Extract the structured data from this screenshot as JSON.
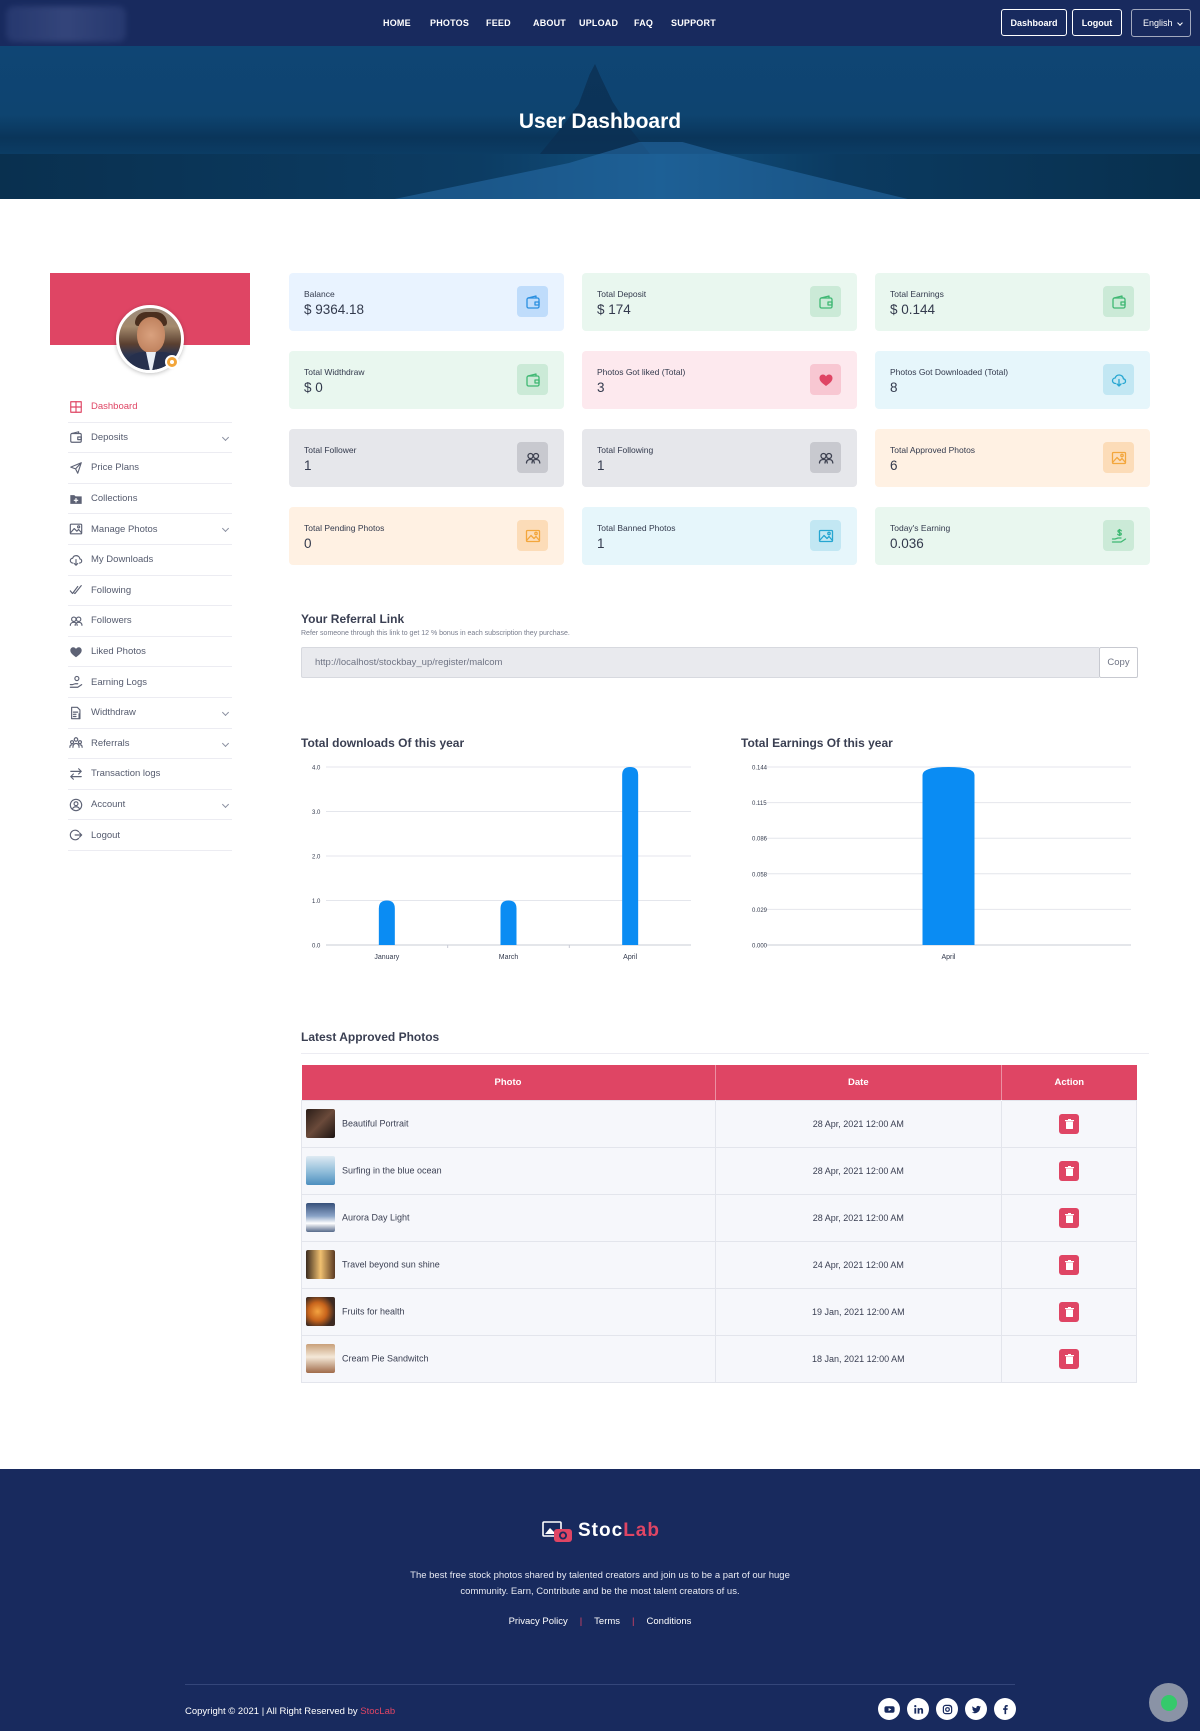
{
  "nav": {
    "links": [
      "HOME",
      "PHOTOS",
      "FEED",
      "ABOUT",
      "UPLOAD",
      "FAQ",
      "SUPPORT"
    ],
    "dashboard_btn": "Dashboard",
    "logout_btn": "Logout",
    "language": "English"
  },
  "hero": {
    "title": "User Dashboard"
  },
  "sidebar": {
    "items": [
      {
        "label": "Dashboard",
        "icon": "grid-icon",
        "active": true,
        "expandable": false
      },
      {
        "label": "Deposits",
        "icon": "wallet-icon",
        "active": false,
        "expandable": true
      },
      {
        "label": "Price Plans",
        "icon": "paper-plane-icon",
        "active": false,
        "expandable": false
      },
      {
        "label": "Collections",
        "icon": "folder-plus-icon",
        "active": false,
        "expandable": false
      },
      {
        "label": "Manage Photos",
        "icon": "image-icon",
        "active": false,
        "expandable": true
      },
      {
        "label": "My Downloads",
        "icon": "cloud-download-icon",
        "active": false,
        "expandable": false
      },
      {
        "label": "Following",
        "icon": "double-check-icon",
        "active": false,
        "expandable": false
      },
      {
        "label": "Followers",
        "icon": "users-icon",
        "active": false,
        "expandable": false
      },
      {
        "label": "Liked Photos",
        "icon": "heart-icon",
        "active": false,
        "expandable": false
      },
      {
        "label": "Earning Logs",
        "icon": "hand-coin-icon",
        "active": false,
        "expandable": false
      },
      {
        "label": "Widthdraw",
        "icon": "document-dollar-icon",
        "active": false,
        "expandable": true
      },
      {
        "label": "Referrals",
        "icon": "group-icon",
        "active": false,
        "expandable": true
      },
      {
        "label": "Transaction logs",
        "icon": "transfer-icon",
        "active": false,
        "expandable": false
      },
      {
        "label": "Account",
        "icon": "user-circle-icon",
        "active": false,
        "expandable": true
      },
      {
        "label": "Logout",
        "icon": "logout-icon",
        "active": false,
        "expandable": false
      }
    ]
  },
  "stats": [
    {
      "label": "Balance",
      "value": "$ 9364.18",
      "theme": "blue",
      "icon": "wallet-icon",
      "color": "#2a8fe0"
    },
    {
      "label": "Total Deposit",
      "value": "$ 174",
      "theme": "green",
      "icon": "wallet-icon",
      "color": "#3fb873"
    },
    {
      "label": "Total Earnings",
      "value": "$ 0.144",
      "theme": "green",
      "icon": "wallet-icon",
      "color": "#3fb873"
    },
    {
      "label": "Total Widthdraw",
      "value": "$ 0",
      "theme": "green",
      "icon": "wallet-icon",
      "color": "#3fb873"
    },
    {
      "label": "Photos Got liked (Total)",
      "value": "3",
      "theme": "pink",
      "icon": "heart-icon",
      "color": "#df4564"
    },
    {
      "label": "Photos Got Downloaded (Total)",
      "value": "8",
      "theme": "cyan",
      "icon": "cloud-download-icon",
      "color": "#26a6d1"
    },
    {
      "label": "Total Follower",
      "value": "1",
      "theme": "grey",
      "icon": "users-icon",
      "color": "#3d4150"
    },
    {
      "label": "Total Following",
      "value": "1",
      "theme": "grey",
      "icon": "users-icon",
      "color": "#3d4150"
    },
    {
      "label": "Total Approved Photos",
      "value": "6",
      "theme": "orange",
      "icon": "image-icon",
      "color": "#f3a63c"
    },
    {
      "label": "Total Pending Photos",
      "value": "0",
      "theme": "orange",
      "icon": "image-icon",
      "color": "#f3a63c"
    },
    {
      "label": "Total Banned Photos",
      "value": "1",
      "theme": "cyan",
      "icon": "image-icon",
      "color": "#26a6d1"
    },
    {
      "label": "Today's Earning",
      "value": "0.036",
      "theme": "green",
      "icon": "hand-dollar-icon",
      "color": "#3fb873"
    }
  ],
  "referral": {
    "title": "Your Referral Link",
    "subtitle": "Refer someone through this link to get 12 % bonus in each subscription they purchase.",
    "link": "http://localhost/stockbay_up/register/malcom",
    "copy_label": "Copy"
  },
  "chart_data": [
    {
      "type": "bar",
      "title": "Total downloads Of this year",
      "categories": [
        "January",
        "March",
        "April"
      ],
      "values": [
        1,
        1,
        4
      ],
      "yticks": [
        "0.0",
        "1.0",
        "2.0",
        "3.0",
        "4.0"
      ],
      "ylim": [
        0,
        4
      ],
      "color": "#0a8cf3",
      "grid": true
    },
    {
      "type": "bar",
      "title": "Total Earnings Of this year",
      "categories": [
        "April"
      ],
      "values": [
        0.144
      ],
      "yticks": [
        "0.000",
        "0.029",
        "0.058",
        "0.086",
        "0.115",
        "0.144"
      ],
      "ylim": [
        0,
        0.144
      ],
      "color": "#0a8cf3",
      "grid": true
    }
  ],
  "approved": {
    "title": "Latest Approved Photos",
    "headers": [
      "Photo",
      "Date",
      "Action"
    ],
    "rows": [
      {
        "name": "Beautiful Portrait",
        "date": "28 Apr, 2021 12:00 AM"
      },
      {
        "name": "Surfing in the blue ocean",
        "date": "28 Apr, 2021 12:00 AM"
      },
      {
        "name": "Aurora Day Light",
        "date": "28 Apr, 2021 12:00 AM"
      },
      {
        "name": "Travel beyond sun shine",
        "date": "24 Apr, 2021 12:00 AM"
      },
      {
        "name": "Fruits for health",
        "date": "19 Jan, 2021 12:00 AM"
      },
      {
        "name": "Cream Pie Sandwitch",
        "date": "18 Jan, 2021 12:00 AM"
      }
    ]
  },
  "footer": {
    "brand_a": "Stoc",
    "brand_b": "Lab",
    "description": "The best free stock photos shared by talented creators and join us to be a part of our huge community. Earn, Contribute and be the most talent creators of us.",
    "links": [
      "Privacy Policy",
      "Terms",
      "Conditions"
    ],
    "copyright": "Copyright © 2021 | All Right Reserved by ",
    "copyright_brand": "StocLab",
    "social": [
      "youtube-icon",
      "linkedin-icon",
      "instagram-icon",
      "twitter-icon",
      "facebook-icon"
    ]
  },
  "colors": {
    "accent": "#df4564",
    "navy": "#182a5e",
    "bar": "#0a8cf3"
  }
}
